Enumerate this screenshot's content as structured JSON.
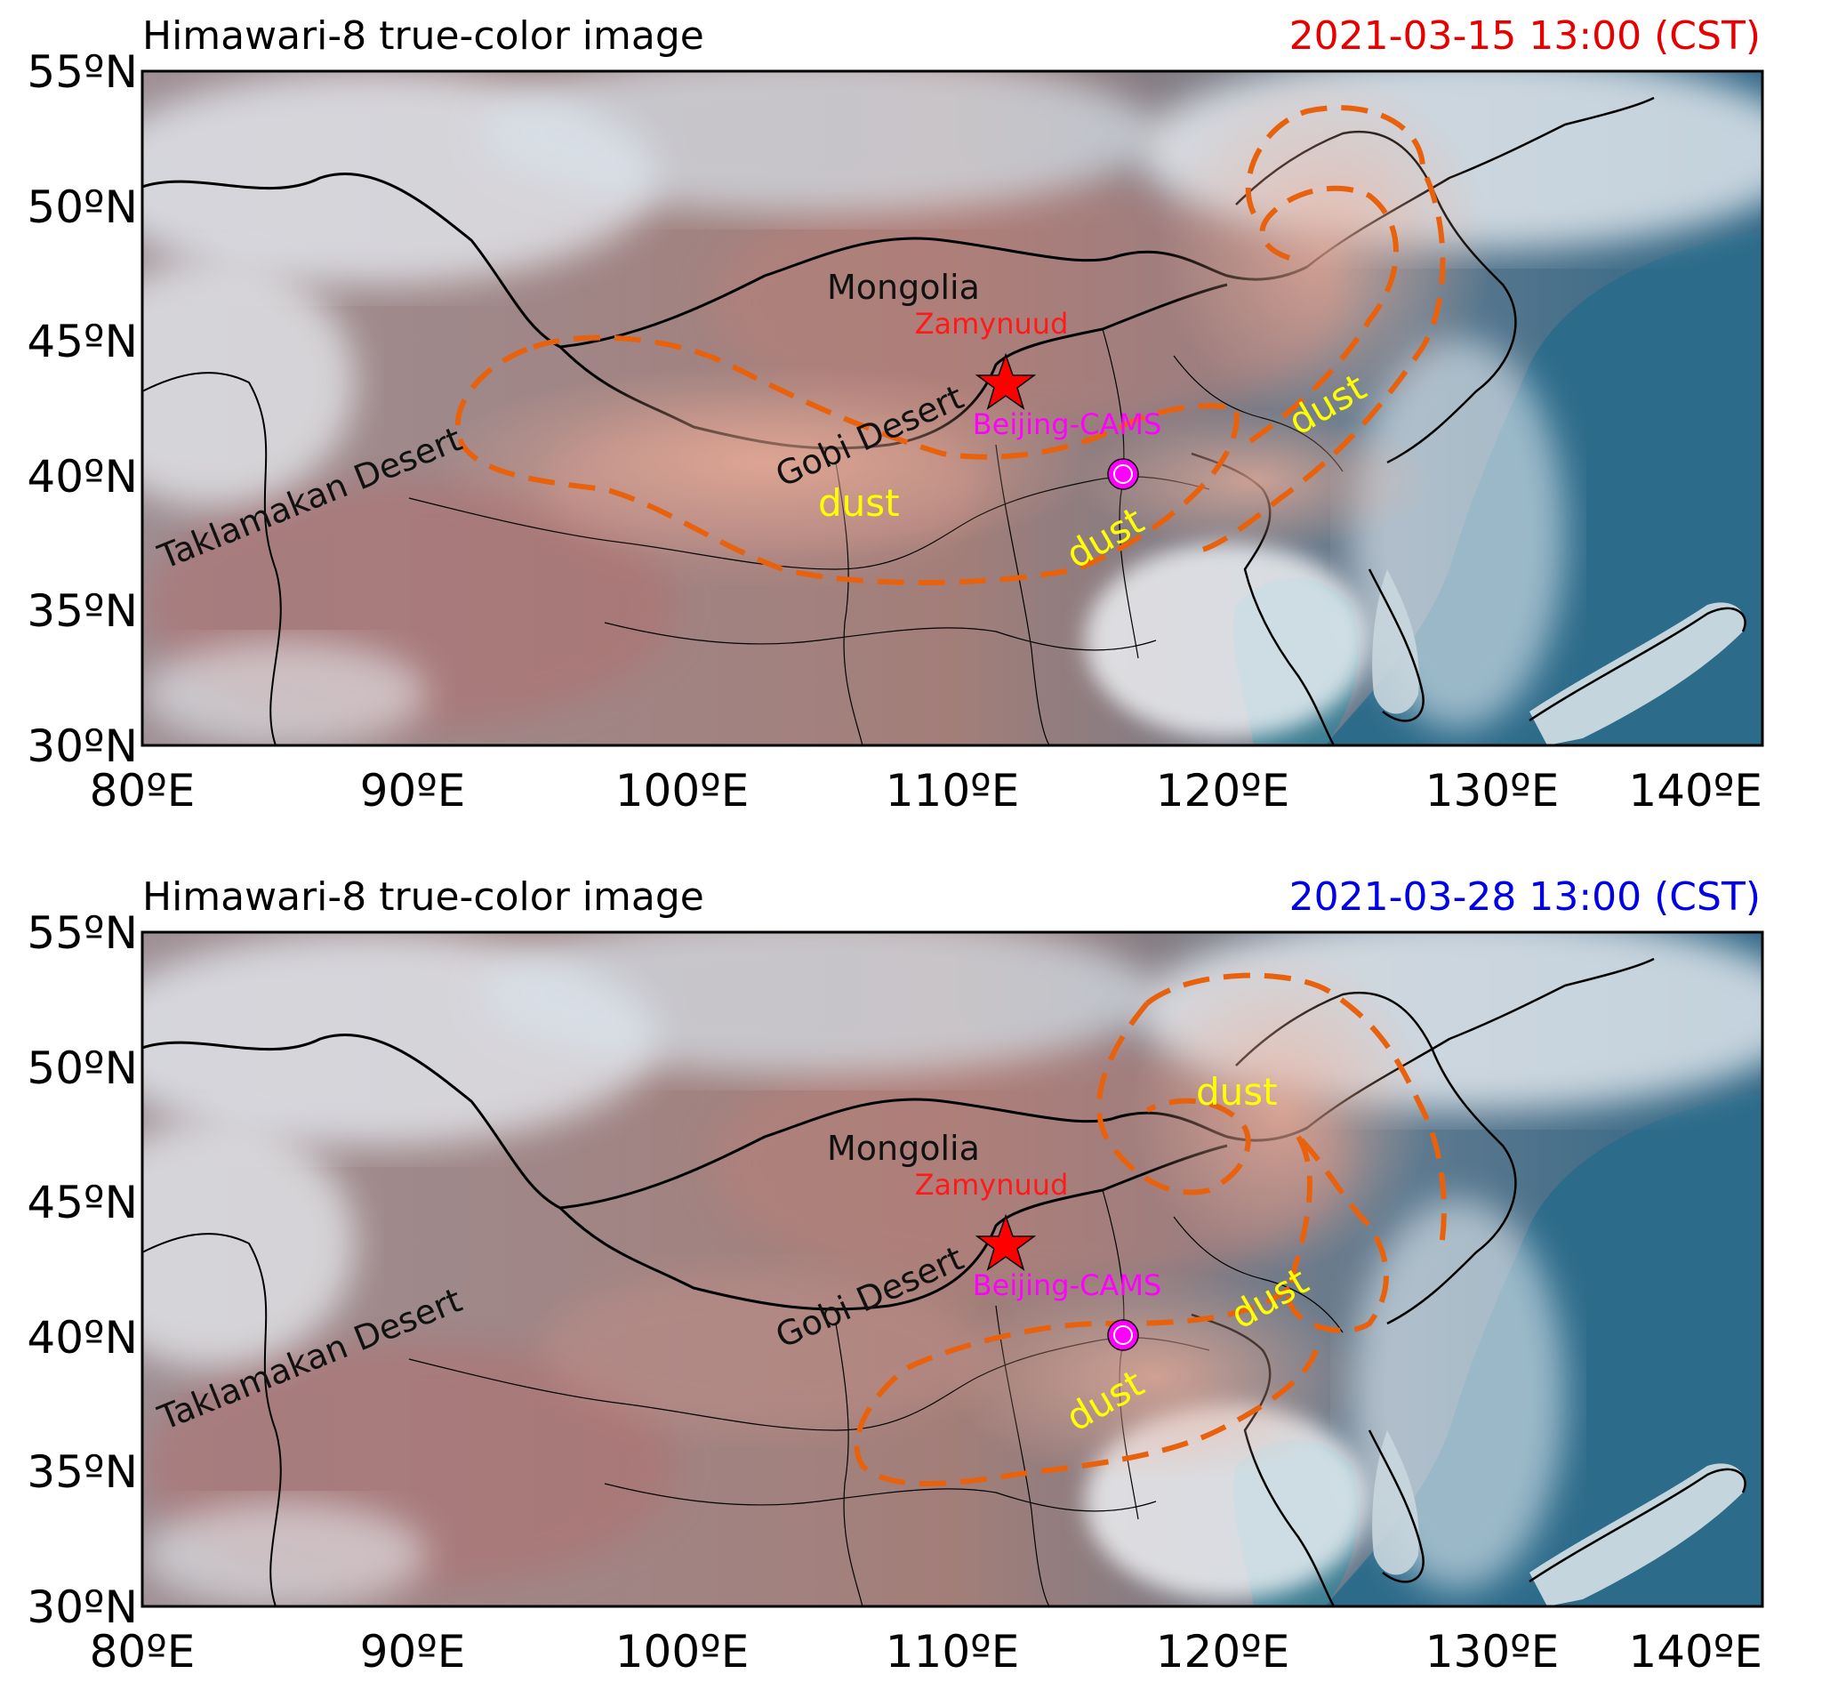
{
  "colors": {
    "dust_outline": "#e8620e",
    "dust_text": "#ffff00",
    "station_marker": "#ff00ff",
    "source_marker": "#ff0000",
    "time_panel1": "#e60000",
    "time_panel2": "#0000e6"
  },
  "axes": {
    "x_ticks": [
      "80ºE",
      "90ºE",
      "100ºE",
      "110ºE",
      "120ºE",
      "130ºE",
      "140ºE"
    ],
    "y_ticks": [
      "55ºN",
      "50ºN",
      "45ºN",
      "40ºN",
      "35ºN",
      "30ºN"
    ],
    "lon_range": [
      80,
      140
    ],
    "lat_range": [
      30,
      55
    ]
  },
  "panels": [
    {
      "title": "Himawari-8 true-color image",
      "time": "2021-03-15 13:00 (CST)",
      "labels": {
        "mongolia": "Mongolia",
        "gobi": "Gobi Desert",
        "taklamakan": "Taklamakan Desert",
        "zamynuud": "Zamynuud",
        "beijing": "Beijing-CAMS",
        "dust": [
          "dust",
          "dust",
          "dust"
        ]
      }
    },
    {
      "title": "Himawari-8 true-color image",
      "time": "2021-03-28 13:00 (CST)",
      "labels": {
        "mongolia": "Mongolia",
        "gobi": "Gobi Desert",
        "taklamakan": "Taklamakan Desert",
        "zamynuud": "Zamynuud",
        "beijing": "Beijing-CAMS",
        "dust": [
          "dust",
          "dust",
          "dust"
        ]
      }
    }
  ]
}
